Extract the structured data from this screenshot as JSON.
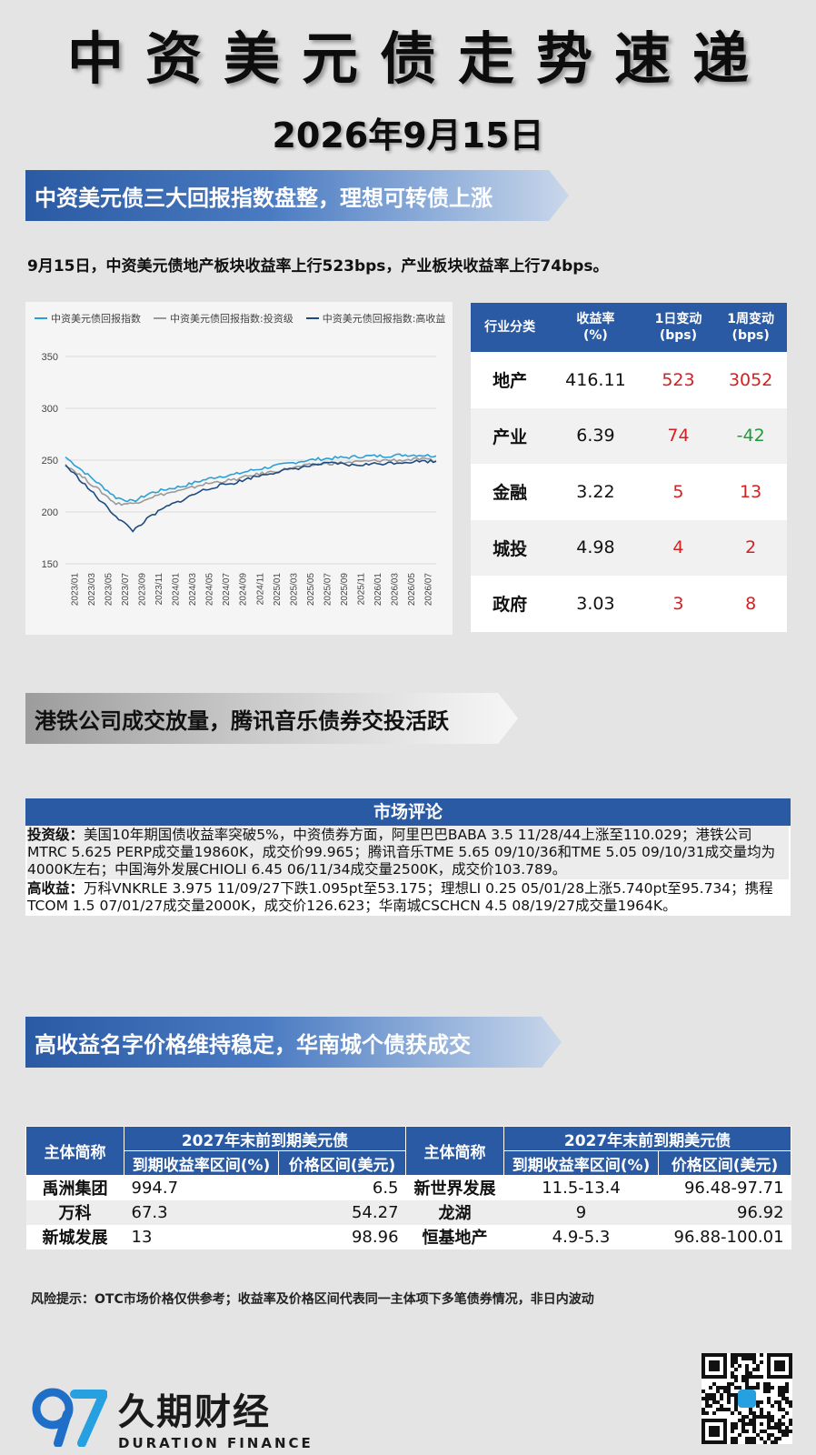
{
  "header": {
    "title": "中资美元债走势速递",
    "date": "2026年9月15日"
  },
  "section1": {
    "banner": "中资美元债三大回报指数盘整，理想可转债上涨",
    "summary": "9月15日，中资美元债地产板块收益率上行523bps，产业板块收益率上行74bps。"
  },
  "chart_data": {
    "type": "line",
    "title": "",
    "xlabel": "",
    "ylabel": "",
    "ylim": [
      150,
      360
    ],
    "y_ticks": [
      "350",
      "300",
      "250",
      "200",
      "150"
    ],
    "x_ticks": [
      "2023/01",
      "2023/03",
      "2023/05",
      "2023/07",
      "2023/09",
      "2023/11",
      "2024/01",
      "2024/03",
      "2024/05",
      "2024/07",
      "2024/09",
      "2024/11",
      "2025/01",
      "2025/03",
      "2025/05",
      "2025/07",
      "2025/09",
      "2025/11",
      "2026/01",
      "2026/03",
      "2026/05",
      "2026/07"
    ],
    "legend_position": "top-left",
    "grid": true,
    "series": [
      {
        "name": "中资美元债回报指数",
        "color": "#2aa0d8",
        "values": [
          253,
          240,
          227,
          214,
          210,
          218,
          222,
          225,
          230,
          234,
          236,
          240,
          243,
          246,
          249,
          251,
          252,
          253,
          254,
          254,
          255,
          255,
          254
        ]
      },
      {
        "name": "中资美元债回报指数:投资级",
        "color": "#9a9a9a",
        "values": [
          246,
          234,
          221,
          208,
          208,
          214,
          218,
          221,
          226,
          229,
          231,
          235,
          238,
          241,
          244,
          246,
          247,
          248,
          249,
          250,
          250,
          251,
          249
        ]
      },
      {
        "name": "中资美元债回报指数:高收益",
        "color": "#1f4a80",
        "values": [
          245,
          229,
          212,
          196,
          182,
          195,
          205,
          212,
          220,
          225,
          228,
          233,
          237,
          240,
          243,
          246,
          247,
          245,
          246,
          247,
          248,
          249,
          249
        ]
      }
    ]
  },
  "sector_table": {
    "headers": [
      "行业分类",
      "收益率\n(%)",
      "1日变动\n(bps)",
      "1周变动\n(bps)"
    ],
    "rows": [
      {
        "name": "地产",
        "yield": "416.11",
        "d1": "523",
        "w1": "3052"
      },
      {
        "name": "产业",
        "yield": "6.39",
        "d1": "74",
        "w1": "-42"
      },
      {
        "name": "金融",
        "yield": "3.22",
        "d1": "5",
        "w1": "13"
      },
      {
        "name": "城投",
        "yield": "4.98",
        "d1": "4",
        "w1": "2"
      },
      {
        "name": "政府",
        "yield": "3.03",
        "d1": "3",
        "w1": "8"
      }
    ]
  },
  "section2": {
    "banner": "港铁公司成交放量，腾讯音乐债券交投活跃",
    "comment_title": "市场评论",
    "ig_label": "投资级：",
    "ig_text": "美国10年期国债收益率突破5%，中资债券方面，阿里巴巴BABA 3.5 11/28/44上涨至110.029；港铁公司MTRC 5.625 PERP成交量19860K，成交价99.965；腾讯音乐TME 5.65 09/10/36和TME 5.05 09/10/31成交量均为4000K左右；中国海外发展CHIOLI 6.45 06/11/34成交量2500K，成交价103.789。",
    "hy_label": "高收益：",
    "hy_text": "万科VNKRLE 3.975 11/09/27下跌1.095pt至53.175；理想LI 0.25 05/01/28上涨5.740pt至95.734；携程TCOM 1.5 07/01/27成交量2000K，成交价126.623；华南城CSCHCN 4.5 08/19/27成交量1964K。"
  },
  "section3": {
    "banner": "高收益名字价格维持稳定，华南城个债获成交",
    "table": {
      "issuer_header": "主体简称",
      "group_header": "2027年末前到期美元债",
      "yield_header": "到期收益率区间(%)",
      "price_header": "价格区间(美元)",
      "left_rows": [
        {
          "name": "禹洲集团",
          "yield": "994.7",
          "price": "6.5"
        },
        {
          "name": "万科",
          "yield": "67.3",
          "price": "54.27"
        },
        {
          "name": "新城发展",
          "yield": "13",
          "price": "98.96"
        }
      ],
      "right_rows": [
        {
          "name": "新世界发展",
          "yield": "11.5-13.4",
          "price": "96.48-97.71"
        },
        {
          "name": "龙湖",
          "yield": "9",
          "price": "96.92"
        },
        {
          "name": "恒基地产",
          "yield": "4.9-5.3",
          "price": "96.88-100.01"
        }
      ]
    },
    "risk": "风险提示：OTC市场价格仅供参考；收益率及价格区间代表同一主体项下多笔债券情况，非日内波动"
  },
  "footer": {
    "logo_mark": "97",
    "logo_cn": "久期财经",
    "logo_en": "DURATION FINANCE",
    "qr_icon": "qr-code-icon"
  }
}
